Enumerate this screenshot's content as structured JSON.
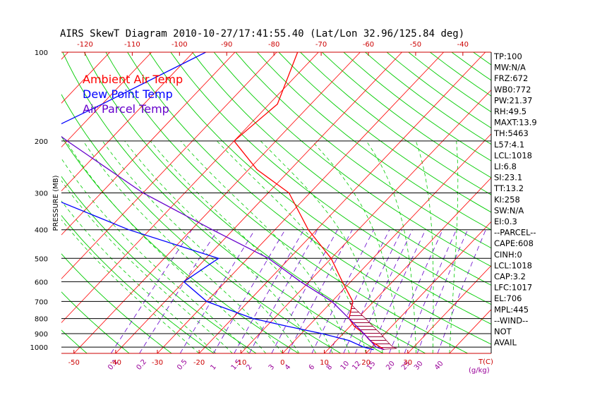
{
  "chart_data": {
    "type": "skewt",
    "title": "AIRS SkewT Diagram 2010-10-27/17:41:55.40 (Lat/Lon 32.96/125.84 deg)",
    "ylabel": "PRESSURE (MB)",
    "pressure_ticks": [
      100,
      200,
      300,
      400,
      500,
      600,
      700,
      800,
      900,
      1000
    ],
    "pressure_range": [
      100,
      1050
    ],
    "temp_range_bottom": [
      -53,
      50
    ],
    "top_temp_ticks": [
      -120,
      -110,
      -100,
      -90,
      -80,
      -70,
      -60,
      -50,
      -40
    ],
    "bottom_temp_ticks": [
      -50,
      -40,
      -30,
      -20,
      -10,
      0,
      10,
      20,
      30
    ],
    "bottom_temp_unit": "T(C)",
    "mixing_ratio_labels": [
      "0.1",
      "0.2",
      "0.5",
      "1",
      "1.5",
      "2",
      "3",
      "4",
      "6",
      "8",
      "10",
      "12",
      "15",
      "20",
      "25",
      "30",
      "40"
    ],
    "mixing_ratio_unit": "(g/kg)",
    "legend": [
      {
        "label": "Ambient Air Temp",
        "color": "#ff0000"
      },
      {
        "label": "Dew Point Temp",
        "color": "#0000ff"
      },
      {
        "label": "Air Parcel Temp",
        "color": "#6600cc"
      }
    ],
    "series": [
      {
        "name": "Ambient Air Temp",
        "color": "#ff0000",
        "points": [
          [
            100,
            -65
          ],
          [
            150,
            -58
          ],
          [
            200,
            -60
          ],
          [
            250,
            -48
          ],
          [
            300,
            -35
          ],
          [
            400,
            -22
          ],
          [
            500,
            -10
          ],
          [
            600,
            -2
          ],
          [
            700,
            5
          ],
          [
            800,
            8
          ],
          [
            850,
            11
          ],
          [
            900,
            15
          ],
          [
            950,
            18
          ],
          [
            1000,
            22
          ],
          [
            1020,
            23.5
          ]
        ]
      },
      {
        "name": "Dew Point Temp",
        "color": "#0000ff",
        "points": [
          [
            100,
            -87
          ],
          [
            150,
            -100
          ],
          [
            200,
            -110
          ],
          [
            250,
            -120
          ],
          [
            300,
            -95
          ],
          [
            400,
            -65
          ],
          [
            500,
            -37
          ],
          [
            600,
            -40
          ],
          [
            700,
            -30
          ],
          [
            800,
            -15
          ],
          [
            850,
            -5
          ],
          [
            900,
            5
          ],
          [
            950,
            13
          ],
          [
            1000,
            18
          ],
          [
            1020,
            21
          ]
        ]
      },
      {
        "name": "Air Parcel Temp",
        "color": "#6600cc",
        "points": [
          [
            100,
            -130
          ],
          [
            150,
            -120
          ],
          [
            200,
            -100
          ],
          [
            300,
            -70
          ],
          [
            400,
            -45
          ],
          [
            500,
            -25
          ],
          [
            600,
            -12
          ],
          [
            700,
            0
          ],
          [
            800,
            8
          ],
          [
            900,
            15
          ],
          [
            1000,
            21
          ],
          [
            1020,
            23.5
          ]
        ]
      }
    ]
  },
  "indices": [
    "TP:100",
    "MW:N/A",
    "FRZ:672",
    "WB0:772",
    "PW:21.37",
    "RH:49.5",
    "MAXT:13.9",
    "TH:5463",
    "L57:4.1",
    "LCL:1018",
    "LI:6.8",
    "SI:23.1",
    "TT:13.2",
    "KI:258",
    "SW:N/A",
    "EI:0.3",
    "--PARCEL--",
    "CAPE:608",
    "CINH:0",
    "LCL:1018",
    "CAP:3.2",
    "LFC:1017",
    "EL:706",
    "MPL:445",
    "--WIND--",
    "NOT",
    "AVAIL"
  ]
}
